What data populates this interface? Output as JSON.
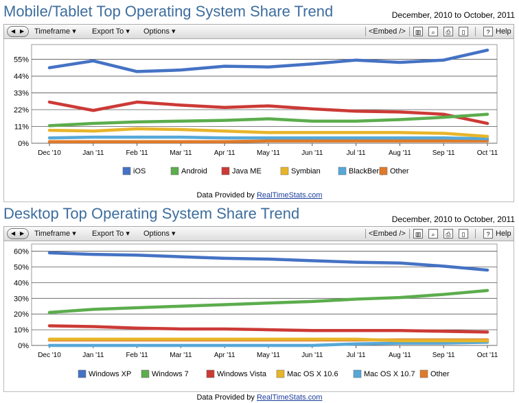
{
  "toolbar": {
    "timeframe_label": "Timeframe",
    "export_label": "Export To",
    "options_label": "Options",
    "embed_label": "<Embed />",
    "help_label": "Help"
  },
  "credit": {
    "prefix": "Data Provided by",
    "link_text": "RealTimeStats.com"
  },
  "chart_data": [
    {
      "type": "line",
      "title": "Mobile/Tablet Top Operating System Share Trend",
      "date_range": "December, 2010 to October, 2011",
      "categories": [
        "Dec '10",
        "Jan '11",
        "Feb '11",
        "Mar '11",
        "Apr '11",
        "May '11",
        "Jun '11",
        "Jul '11",
        "Aug '11",
        "Sep '11",
        "Oct '11"
      ],
      "yticks": [
        "0%",
        "11%",
        "22%",
        "33%",
        "44%",
        "55%"
      ],
      "ylim": [
        0,
        62
      ],
      "ytick_values": [
        0,
        11,
        22,
        33,
        44,
        55
      ],
      "xlabel": "",
      "ylabel": "",
      "legend_position": "bottom",
      "series": [
        {
          "name": "iOS",
          "color": "#4472c4",
          "values": [
            49.5,
            54,
            47,
            48,
            50.5,
            50,
            52,
            54.5,
            53,
            54.5,
            61
          ]
        },
        {
          "name": "Android",
          "color": "#5cad4d",
          "values": [
            11.5,
            13,
            14,
            14.5,
            15,
            16,
            14.5,
            14.5,
            15.5,
            17,
            19
          ]
        },
        {
          "name": "Java ME",
          "color": "#cc3a36",
          "values": [
            27,
            21.5,
            27,
            25,
            23.5,
            24.5,
            22.5,
            21,
            20.5,
            19,
            13
          ]
        },
        {
          "name": "Symbian",
          "color": "#e8b52a",
          "values": [
            8.5,
            8,
            9.5,
            9,
            8,
            7,
            7,
            7,
            7,
            6.5,
            4.5
          ]
        },
        {
          "name": "BlackBerry",
          "color": "#55a8d8",
          "values": [
            3.5,
            4,
            4,
            4,
            3.5,
            3.5,
            3.5,
            3.5,
            3.5,
            3.5,
            3
          ]
        },
        {
          "name": "Other",
          "color": "#e07a2a",
          "values": [
            1,
            1,
            1,
            1,
            1,
            1.5,
            1.5,
            1.5,
            1.5,
            1.5,
            1.5
          ]
        }
      ]
    },
    {
      "type": "line",
      "title": "Desktop Top Operating System Share Trend",
      "date_range": "December, 2010 to October, 2011",
      "categories": [
        "Dec '10",
        "Jan '11",
        "Feb '11",
        "Mar '11",
        "Apr '11",
        "May '11",
        "Jun '11",
        "Jul '11",
        "Aug '11",
        "Sep '11",
        "Oct '11"
      ],
      "yticks": [
        "0%",
        "10%",
        "20%",
        "30%",
        "40%",
        "50%",
        "60%"
      ],
      "ylim": [
        0,
        62
      ],
      "ytick_values": [
        0,
        10,
        20,
        30,
        40,
        50,
        60
      ],
      "xlabel": "",
      "ylabel": "",
      "legend_position": "bottom",
      "series": [
        {
          "name": "Windows XP",
          "color": "#4472c4",
          "values": [
            59,
            58,
            57.5,
            56.5,
            55.5,
            55,
            54,
            53,
            52.5,
            50.5,
            48
          ]
        },
        {
          "name": "Windows 7",
          "color": "#5cad4d",
          "values": [
            21,
            23,
            24,
            25,
            26,
            27,
            28,
            29.5,
            30.5,
            32.5,
            35
          ]
        },
        {
          "name": "Windows Vista",
          "color": "#cc3a36",
          "values": [
            12.5,
            12,
            11,
            10.5,
            10.5,
            10,
            9.5,
            9.5,
            9.5,
            9,
            8.5
          ]
        },
        {
          "name": "Mac OS X 10.6",
          "color": "#e8b52a",
          "values": [
            4,
            4,
            4,
            4,
            4,
            4,
            4,
            4,
            3,
            3,
            3
          ]
        },
        {
          "name": "Mac OS X 10.7",
          "color": "#55a8d8",
          "values": [
            0,
            0,
            0,
            0,
            0,
            0,
            0,
            1,
            1.5,
            1.5,
            2
          ]
        },
        {
          "name": "Other",
          "color": "#e07a2a",
          "values": [
            3.5,
            3.5,
            3.5,
            3.5,
            3.5,
            3.5,
            3.5,
            3.5,
            3.5,
            3.5,
            3.5
          ]
        }
      ]
    }
  ]
}
